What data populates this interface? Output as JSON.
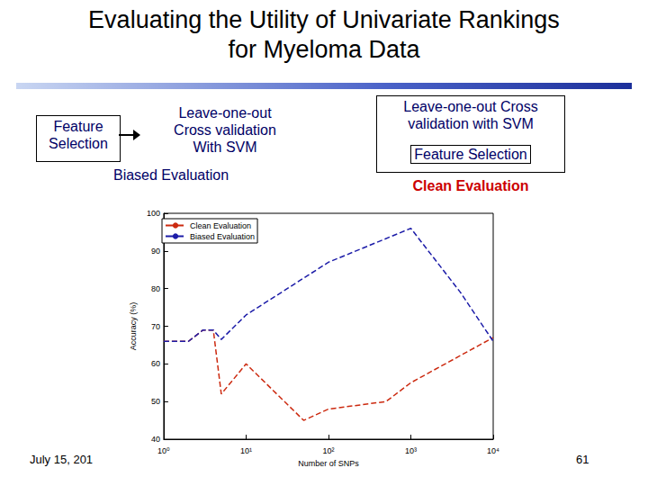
{
  "slide": {
    "title_lines": [
      "Evaluating the Utility of Univariate Rankings",
      "for Myeloma Data"
    ],
    "left_diagram": {
      "first_box_lines": [
        "Feature",
        "Selection"
      ],
      "second_box_lines": [
        "Leave-one-out",
        "Cross validation",
        "With SVM"
      ],
      "caption": "Biased Evaluation"
    },
    "right_diagram": {
      "outer_box_lines": [
        "Leave-one-out Cross",
        "validation with SVM"
      ],
      "inner_box": "Feature Selection",
      "caption": "Clean Evaluation"
    },
    "footer": {
      "date": "July 15, 201",
      "page": "61"
    }
  },
  "chart_data": {
    "type": "line",
    "x_label": "Number of SNPs",
    "y_label": "Accuracy (%)",
    "log": "x",
    "xlim": [
      1,
      10000
    ],
    "xticks": [
      {
        "value": 1,
        "label": "10⁰"
      },
      {
        "value": 10,
        "label": "10¹"
      },
      {
        "value": 100,
        "label": "10²"
      },
      {
        "value": 1000,
        "label": "10³"
      },
      {
        "value": 10000,
        "label": "10⁴"
      }
    ],
    "ylim": [
      40,
      100
    ],
    "yticks": [
      40,
      50,
      60,
      70,
      80,
      90,
      100
    ],
    "grid": false,
    "legend": "upper left",
    "series": [
      {
        "name": "Clean Evaluation",
        "color": "#cc2a10",
        "line_style": "dashed",
        "x": [
          1,
          2,
          3,
          4,
          5,
          10,
          50,
          100,
          500,
          1000,
          10000
        ],
        "values": [
          66,
          66,
          69,
          69,
          52,
          60,
          45,
          48,
          50,
          55,
          67
        ]
      },
      {
        "name": "Biased Evaluation",
        "color": "#1c1ca8",
        "line_style": "dashed",
        "x": [
          1,
          2,
          3,
          4,
          5,
          10,
          100,
          1000,
          4000,
          10000
        ],
        "values": [
          66,
          66,
          69,
          69,
          66.5,
          73,
          87,
          96,
          79,
          66
        ]
      }
    ]
  }
}
